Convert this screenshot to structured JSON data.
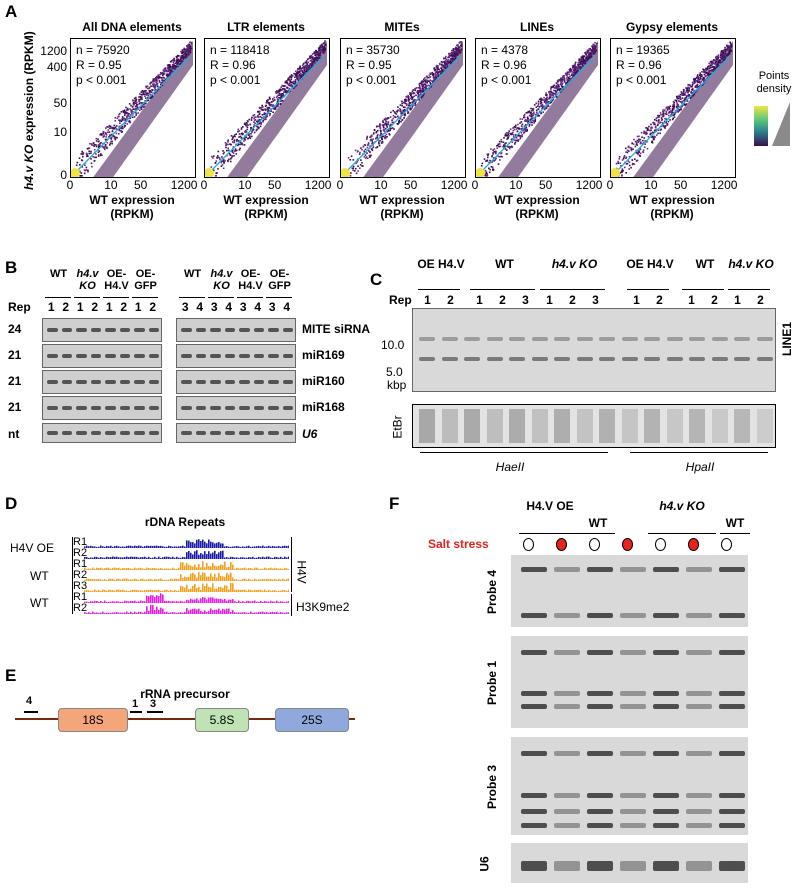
{
  "panelA": {
    "letter": "A",
    "ylabel_prefix": "h4.v KO",
    "ylabel_suffix": " expression (RPKM)",
    "xlabel_line1": "WT expression",
    "xlabel_line2": "(RPKM)",
    "y_ticks": [
      "1200",
      "400",
      "50",
      "10",
      "0"
    ],
    "x_ticks": [
      "0",
      "10",
      "50",
      "1200"
    ],
    "legend_title_line1": "Points",
    "legend_title_line2": "density",
    "plots": [
      {
        "title": "All DNA elements",
        "n": "n = 75920",
        "r": "R = 0.95",
        "p": "p < 0.001"
      },
      {
        "title": "LTR elements",
        "n": "n = 118418",
        "r": "R = 0.96",
        "p": "p < 0.001"
      },
      {
        "title": "MITEs",
        "n": "n = 35730",
        "r": "R = 0.95",
        "p": "p < 0.001"
      },
      {
        "title": "LINEs",
        "n": "n = 4378",
        "r": "R = 0.96",
        "p": "p < 0.001"
      },
      {
        "title": "Gypsy elements",
        "n": "n = 19365",
        "r": "R = 0.96",
        "p": "p < 0.001"
      }
    ],
    "colors": {
      "dark": "#3b0f4f",
      "mid": "#6a2c8c",
      "line": "#29a8e0",
      "yellow": "#f0e442"
    }
  },
  "panelB": {
    "letter": "B",
    "rep_label": "Rep",
    "groups_left": [
      {
        "label": "WT",
        "reps": [
          "1",
          "2"
        ]
      },
      {
        "label": "h4.v KO",
        "reps": [
          "1",
          "2"
        ],
        "italic": true
      },
      {
        "label": "OE- H4.V",
        "reps": [
          "1",
          "2"
        ]
      },
      {
        "label": "OE- GFP",
        "reps": [
          "1",
          "2"
        ]
      }
    ],
    "groups_right": [
      {
        "label": "WT",
        "reps": [
          "3",
          "4"
        ]
      },
      {
        "label": "h4.v KO",
        "reps": [
          "3",
          "4"
        ],
        "italic": true
      },
      {
        "label": "OE- H4.V",
        "reps": [
          "3",
          "4"
        ]
      },
      {
        "label": "OE- GFP",
        "reps": [
          "3",
          "4"
        ]
      }
    ],
    "size_labels": [
      "24",
      "21",
      "21",
      "21",
      "nt"
    ],
    "probes": [
      "MITE siRNA",
      "miR169",
      "miR160",
      "miR168",
      "U6"
    ]
  },
  "panelC": {
    "letter": "C",
    "rep_label": "Rep",
    "groups": [
      {
        "label": "OE H4.V",
        "reps": [
          "1",
          "2"
        ]
      },
      {
        "label": "WT",
        "reps": [
          "1",
          "2",
          "3"
        ]
      },
      {
        "label": "h4.v KO",
        "reps": [
          "1",
          "2",
          "3"
        ],
        "italic": true
      },
      {
        "label": "OE H4.V",
        "reps": [
          "1",
          "2"
        ]
      },
      {
        "label": "WT",
        "reps": [
          "1",
          "2"
        ]
      },
      {
        "label": "h4.v KO",
        "reps": [
          "1",
          "2"
        ],
        "italic": true
      }
    ],
    "size_10": "10.0",
    "size_5": "5.0",
    "size_unit": "kbp",
    "probe": "LINE1",
    "etbr": "EtBr",
    "enzyme1": "HaeII",
    "enzyme2": "HpaII"
  },
  "panelD": {
    "letter": "D",
    "title": "rDNA Repeats",
    "row_groups": [
      {
        "label": "H4V OE",
        "reps": [
          "R1",
          "R2"
        ]
      },
      {
        "label": "WT",
        "reps": [
          "R1",
          "R2",
          "R3"
        ]
      },
      {
        "label": "WT",
        "reps": [
          "R1",
          "R2"
        ]
      }
    ],
    "marks": [
      "H4V",
      "H3K9me2"
    ],
    "colors": {
      "oe": "#1a1aa6",
      "wt": "#f0a020",
      "k9": "#e020e0"
    }
  },
  "panelE": {
    "letter": "E",
    "title": "rRNA precursor",
    "probe_labels": [
      "4",
      "1",
      "3"
    ],
    "segments": [
      {
        "label": "18S",
        "color": "#f4a57a"
      },
      {
        "label": "5.8S",
        "color": "#bfe3b4"
      },
      {
        "label": "25S",
        "color": "#8fa9dc"
      }
    ],
    "line_color": "#7a2a10"
  },
  "panelF": {
    "letter": "F",
    "groups": [
      {
        "label": "H4.V OE"
      },
      {
        "label": "WT"
      },
      {
        "label": "h4.v KO",
        "italic": true
      },
      {
        "label": "WT"
      }
    ],
    "salt_label": "Salt stress",
    "salt_pattern": [
      "off",
      "on",
      "off",
      "on",
      "off",
      "on",
      "off"
    ],
    "probes": [
      "Probe 4",
      "Probe 1",
      "Probe 3",
      "U6"
    ],
    "colors": {
      "salt": "#e8231e"
    }
  }
}
